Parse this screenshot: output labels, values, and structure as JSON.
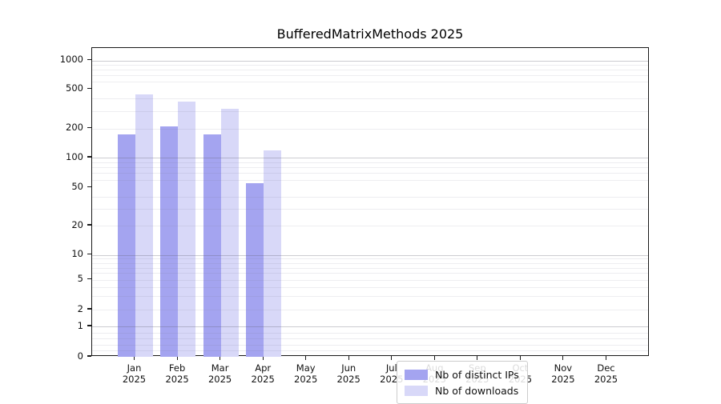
{
  "title": "BufferedMatrixMethods 2025",
  "chart_data": {
    "type": "bar",
    "title": "BufferedMatrixMethods 2025",
    "categories": [
      "Jan",
      "Feb",
      "Mar",
      "Apr",
      "May",
      "Jun",
      "Jul",
      "Aug",
      "Sep",
      "Oct",
      "Nov",
      "Dec"
    ],
    "x_year_line": "2025",
    "series": [
      {
        "name": "Nb of distinct IPs",
        "color": "#a4a4f0",
        "values": [
          175,
          210,
          175,
          55,
          null,
          null,
          null,
          null,
          null,
          null,
          null,
          null
        ]
      },
      {
        "name": "Nb of downloads",
        "color": "#d8d8f8",
        "values": [
          440,
          375,
          315,
          119,
          null,
          null,
          null,
          null,
          null,
          null,
          null,
          null
        ]
      }
    ],
    "y_axis": {
      "scale": "symlog",
      "ticks": [
        0,
        1,
        2,
        5,
        10,
        20,
        50,
        100,
        200,
        500,
        1000
      ],
      "major_gridlines": [
        1,
        10,
        100,
        1000
      ],
      "minor_gridlines": [
        0.2,
        0.4,
        0.6,
        0.8,
        2,
        3,
        4,
        5,
        6,
        7,
        8,
        9,
        20,
        30,
        40,
        60,
        70,
        80,
        90,
        200,
        300,
        400,
        600,
        700,
        800,
        900
      ],
      "ylim": [
        0,
        1000
      ],
      "grid": "on"
    },
    "legend_position": "lower center",
    "xlabel": "",
    "ylabel": ""
  }
}
